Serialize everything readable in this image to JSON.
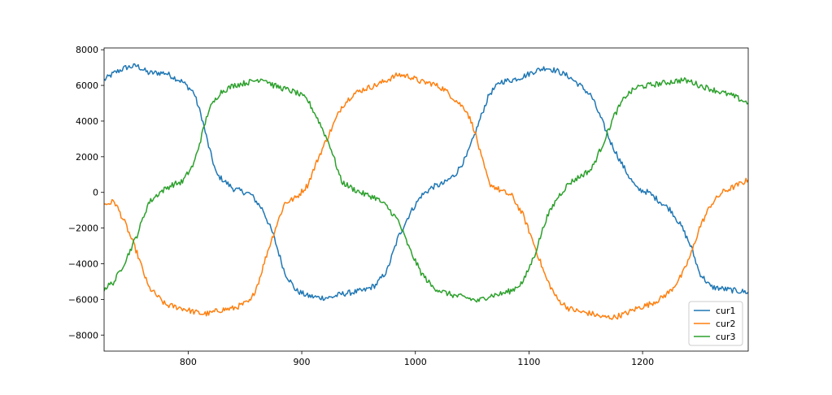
{
  "colors": {
    "cur1": "#1f77b4",
    "cur2": "#ff7f0e",
    "cur3": "#2ca02c",
    "axes": "#000000",
    "background": "#ffffff"
  },
  "chart_data": {
    "type": "line",
    "xlim": [
      726,
      1293
    ],
    "ylim": [
      -8900,
      8100
    ],
    "grid": false,
    "legend_position": "lower-right",
    "x_ticks": [
      800,
      900,
      1000,
      1100,
      1200
    ],
    "y_ticks": [
      8000,
      6000,
      4000,
      2000,
      0,
      -2000,
      -4000,
      -6000,
      -8000
    ],
    "x_tick_labels": [
      "800",
      "900",
      "1000",
      "1100",
      "1200"
    ],
    "y_tick_labels": [
      "8000",
      "6000",
      "4000",
      "2000",
      "0",
      "−2000",
      "−4000",
      "−6000",
      "−8000"
    ],
    "series": [
      {
        "name": "cur1",
        "x": [
          726,
          735,
          745,
          755,
          765,
          780,
          795,
          805,
          812,
          818,
          825,
          840,
          855,
          866,
          875,
          885,
          895,
          905,
          915,
          925,
          935,
          945,
          955,
          965,
          975,
          985,
          995,
          1005,
          1015,
          1025,
          1035,
          1045,
          1052,
          1058,
          1065,
          1075,
          1085,
          1095,
          1105,
          1115,
          1125,
          1135,
          1145,
          1155,
          1165,
          1172,
          1180,
          1188,
          1195,
          1205,
          1215,
          1225,
          1235,
          1243,
          1250,
          1260,
          1270,
          1280,
          1293
        ],
        "y": [
          6300,
          6700,
          7000,
          7100,
          6700,
          6700,
          6200,
          5600,
          4200,
          2600,
          1000,
          200,
          -100,
          -1000,
          -2400,
          -4500,
          -5500,
          -5800,
          -5900,
          -5900,
          -5700,
          -5600,
          -5500,
          -5200,
          -4400,
          -2500,
          -1200,
          -200,
          300,
          500,
          1000,
          2000,
          3200,
          4300,
          5500,
          6200,
          6300,
          6500,
          6800,
          7000,
          6800,
          6500,
          6000,
          5400,
          3900,
          2800,
          1800,
          900,
          200,
          0,
          -500,
          -1000,
          -2000,
          -3100,
          -4500,
          -5300,
          -5400,
          -5500,
          -5600
        ]
      },
      {
        "name": "cur2",
        "x": [
          726,
          735,
          745,
          755,
          765,
          780,
          795,
          805,
          812,
          818,
          828,
          840,
          855,
          862,
          870,
          878,
          885,
          895,
          905,
          915,
          925,
          935,
          945,
          955,
          965,
          975,
          985,
          995,
          1005,
          1015,
          1025,
          1035,
          1045,
          1052,
          1058,
          1065,
          1075,
          1085,
          1095,
          1105,
          1115,
          1125,
          1135,
          1145,
          1155,
          1165,
          1175,
          1185,
          1195,
          1205,
          1215,
          1225,
          1235,
          1243,
          1250,
          1260,
          1270,
          1280,
          1293
        ],
        "y": [
          -700,
          -500,
          -1800,
          -3400,
          -5300,
          -6300,
          -6500,
          -6700,
          -6800,
          -6800,
          -6600,
          -6500,
          -6100,
          -5000,
          -3300,
          -1800,
          -600,
          -300,
          400,
          2000,
          3400,
          4800,
          5500,
          5800,
          6000,
          6300,
          6600,
          6500,
          6200,
          6100,
          5800,
          5200,
          4600,
          3500,
          2000,
          500,
          100,
          -200,
          -1300,
          -3000,
          -4800,
          -6000,
          -6500,
          -6700,
          -6800,
          -7000,
          -7000,
          -6800,
          -6500,
          -6300,
          -6000,
          -5500,
          -4600,
          -3400,
          -2000,
          -700,
          0,
          300,
          700
        ]
      },
      {
        "name": "cur3",
        "x": [
          726,
          735,
          745,
          755,
          765,
          775,
          785,
          795,
          805,
          812,
          818,
          828,
          840,
          855,
          866,
          875,
          885,
          895,
          905,
          915,
          925,
          935,
          945,
          955,
          965,
          975,
          985,
          990,
          995,
          1005,
          1015,
          1025,
          1035,
          1045,
          1055,
          1065,
          1075,
          1085,
          1095,
          1105,
          1115,
          1125,
          1135,
          1145,
          1155,
          1165,
          1175,
          1185,
          1195,
          1205,
          1215,
          1225,
          1235,
          1243,
          1250,
          1260,
          1270,
          1280,
          1293
        ],
        "y": [
          -5400,
          -5000,
          -3800,
          -2400,
          -600,
          0,
          400,
          600,
          1600,
          3200,
          4600,
          5600,
          6000,
          6200,
          6400,
          6000,
          5800,
          5600,
          5200,
          4000,
          2600,
          600,
          200,
          -100,
          -300,
          -800,
          -1600,
          -2400,
          -3200,
          -4500,
          -5300,
          -5600,
          -5800,
          -5900,
          -6100,
          -5800,
          -5700,
          -5500,
          -5000,
          -3500,
          -1500,
          -300,
          500,
          900,
          1300,
          2700,
          4300,
          5400,
          5900,
          6000,
          6100,
          6200,
          6300,
          6200,
          6000,
          5800,
          5600,
          5400,
          5000
        ]
      }
    ]
  }
}
